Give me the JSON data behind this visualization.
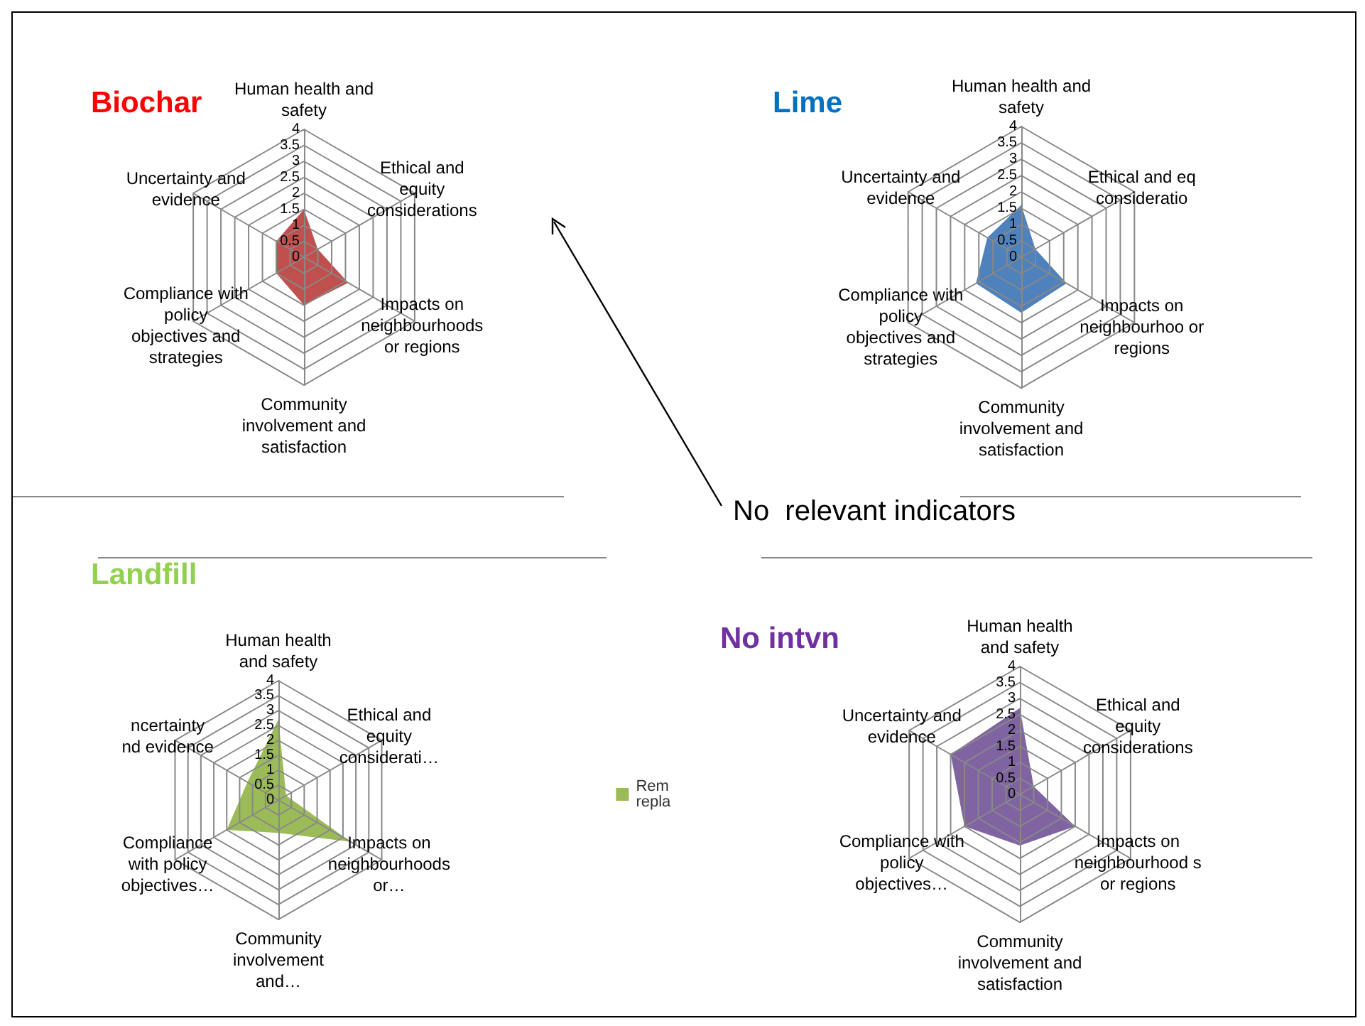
{
  "chart_data": [
    {
      "type": "radar",
      "title": "Biochar",
      "categories": [
        "Human health and safety",
        "Ethical and equity considerations",
        "Impacts on neighbourhoods or regions",
        "Community involvement and satisfaction",
        "Compliance with policy objectives and strategies",
        "Uncertainty and evidence"
      ],
      "series": [
        {
          "color": "#c0504d",
          "values": [
            1.5,
            0.5,
            1.6,
            1.5,
            1,
            1
          ]
        }
      ],
      "ylim": [
        0,
        4
      ],
      "yticks": [
        0,
        0.5,
        1,
        1.5,
        2,
        2.5,
        3,
        3.5,
        4
      ],
      "grid": true,
      "annotations": [
        "No  relevant indicators"
      ]
    },
    {
      "type": "radar",
      "title": "Lime",
      "categories": [
        "Human health and safety",
        "Ethical and eq consideratio",
        "Impacts on neighbourhoo or regions",
        "Community involvement and satisfaction",
        "Compliance with policy objectives and strategies",
        "Uncertainty and evidence"
      ],
      "series": [
        {
          "color": "#4f81bd",
          "values": [
            1.6,
            0.5,
            1.6,
            1.7,
            1.6,
            1.2
          ]
        }
      ],
      "ylim": [
        0,
        4
      ],
      "yticks": [
        0,
        0.5,
        1,
        1.5,
        2,
        2.5,
        3,
        3.5,
        4
      ],
      "grid": true
    },
    {
      "type": "radar",
      "title": "Landfill",
      "categories": [
        "Human health and safety",
        "Ethical and equity considerati…",
        "Impacts on neighbourhoods or…",
        "Community involvement and…",
        "Compliance with policy objectives…",
        "ncertainty nd evidence"
      ],
      "series": [
        {
          "name": "Rem repla",
          "color": "#9bbb59",
          "values": [
            2.7,
            0.3,
            2.8,
            1.1,
            2,
            1.2
          ]
        }
      ],
      "ylim": [
        0,
        4
      ],
      "yticks": [
        0,
        0.5,
        1,
        1.5,
        2,
        2.5,
        3,
        3.5,
        4
      ],
      "grid": true,
      "legend": "right"
    },
    {
      "type": "radar",
      "title": "No intvn",
      "categories": [
        "Human health and safety",
        "Ethical and equity considerations",
        "Impacts on neighbourhood s or regions",
        "Community involvement and satisfaction",
        "Compliance with policy objectives…",
        "Uncertainty and evidence"
      ],
      "series": [
        {
          "color": "#8064a2",
          "values": [
            2.7,
            0.5,
            2,
            1.6,
            2,
            2.5
          ]
        }
      ],
      "ylim": [
        0,
        4
      ],
      "yticks": [
        0,
        0.5,
        1,
        1.5,
        2,
        2.5,
        3,
        3.5,
        4
      ],
      "grid": true
    }
  ]
}
